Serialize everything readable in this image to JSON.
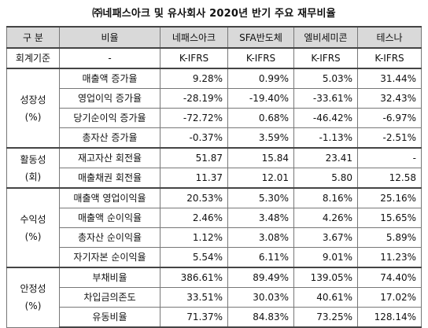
{
  "title": "㈜네패스아크 및 유사회사 2020년 반기 주요 재무비율",
  "headers": [
    "구 분",
    "비율",
    "네패스아크",
    "SFA반도체",
    "엘비세미콘",
    "테스나"
  ],
  "accounting": {
    "label": "회계기준",
    "ratio": "-",
    "values": [
      "K-IFRS",
      "K-IFRS",
      "K-IFRS",
      "K-IFRS"
    ]
  },
  "groups": [
    {
      "category_line1": "성장성",
      "category_line2": "(%)",
      "rows": [
        {
          "label": "매출액 증가율",
          "values": [
            "9.28%",
            "0.99%",
            "5.03%",
            "31.44%"
          ]
        },
        {
          "label": "영업이익 증가율",
          "values": [
            "-28.19%",
            "-19.40%",
            "-33.61%",
            "32.43%"
          ]
        },
        {
          "label": "당기순이익 증가율",
          "values": [
            "-72.72%",
            "0.68%",
            "-46.42%",
            "-6.97%"
          ]
        },
        {
          "label": "총자산 증가율",
          "values": [
            "-0.37%",
            "3.59%",
            "-1.13%",
            "-2.51%"
          ]
        }
      ]
    },
    {
      "category_line1": "활동성",
      "category_line2": "(회)",
      "rows": [
        {
          "label": "재고자산 회전율",
          "values": [
            "51.87",
            "15.84",
            "23.41",
            "-"
          ]
        },
        {
          "label": "매출채권 회전율",
          "values": [
            "11.37",
            "12.01",
            "5.80",
            "12.58"
          ]
        }
      ]
    },
    {
      "category_line1": "수익성",
      "category_line2": "(%)",
      "rows": [
        {
          "label": "매출액 영업이익율",
          "values": [
            "20.53%",
            "5.30%",
            "8.16%",
            "25.16%"
          ]
        },
        {
          "label": "매출액 순이익율",
          "values": [
            "2.46%",
            "3.48%",
            "4.26%",
            "15.65%"
          ]
        },
        {
          "label": "총자산 순이익율",
          "values": [
            "1.12%",
            "3.08%",
            "3.67%",
            "5.89%"
          ]
        },
        {
          "label": "자기자본 순이익율",
          "values": [
            "5.54%",
            "6.11%",
            "9.01%",
            "11.23%"
          ]
        }
      ]
    },
    {
      "category_line1": "안정성",
      "category_line2": "(%)",
      "rows": [
        {
          "label": "부채비율",
          "values": [
            "386.61%",
            "89.49%",
            "139.05%",
            "74.40%"
          ]
        },
        {
          "label": "차입금의존도",
          "values": [
            "33.51%",
            "30.03%",
            "40.61%",
            "17.02%"
          ]
        },
        {
          "label": "유동비율",
          "values": [
            "71.37%",
            "84.83%",
            "73.25%",
            "128.14%"
          ]
        }
      ]
    }
  ]
}
